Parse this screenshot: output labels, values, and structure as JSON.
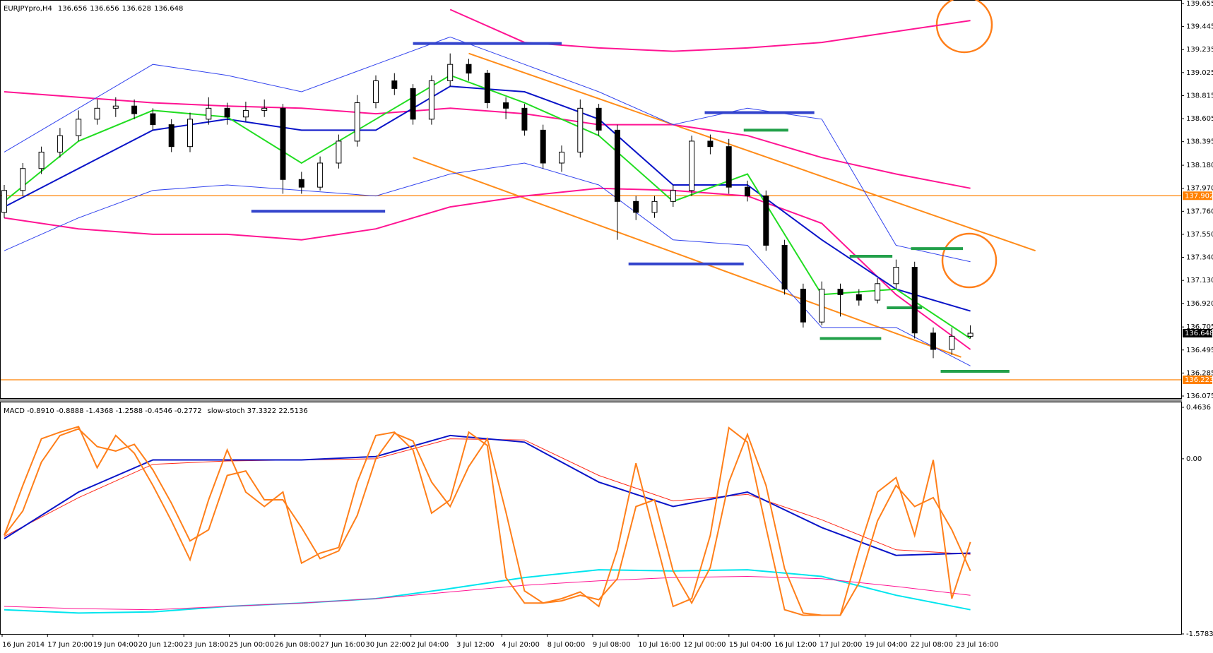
{
  "chart_data": [
    {
      "type": "candlestick",
      "symbol": "EURJPYpro,H4",
      "ohlc": [
        136.656,
        136.656,
        136.628,
        136.648
      ],
      "open": [
        137.75,
        137.95,
        138.15,
        138.3,
        138.45,
        138.6,
        138.7,
        138.72,
        138.65,
        138.55,
        138.35,
        138.6,
        138.7,
        138.62,
        138.68,
        138.7,
        138.05,
        137.98,
        138.2,
        138.4,
        138.75,
        138.95,
        138.88,
        138.6,
        138.95,
        139.1,
        139.02,
        138.75,
        138.7,
        138.5,
        138.2,
        138.3,
        138.7,
        138.5,
        137.85,
        137.75,
        137.85,
        137.95,
        138.4,
        138.35,
        137.98,
        137.9,
        137.45,
        137.05,
        136.75,
        137.05,
        137.0,
        136.95,
        137.1,
        137.25,
        136.65,
        136.5,
        136.62
      ],
      "high": [
        138.0,
        138.2,
        138.35,
        138.52,
        138.68,
        138.78,
        138.8,
        138.78,
        138.7,
        138.6,
        138.66,
        138.8,
        138.75,
        138.76,
        138.78,
        138.74,
        138.12,
        138.26,
        138.46,
        138.82,
        139.0,
        139.02,
        138.92,
        139.0,
        139.2,
        139.15,
        139.05,
        138.8,
        138.74,
        138.55,
        138.36,
        138.78,
        138.74,
        138.55,
        137.9,
        137.9,
        138.0,
        138.45,
        138.46,
        138.42,
        138.04,
        137.95,
        137.5,
        137.1,
        137.12,
        137.1,
        137.05,
        137.15,
        137.32,
        137.3,
        136.7,
        136.7,
        136.72
      ],
      "low": [
        137.7,
        137.9,
        138.1,
        138.25,
        138.4,
        138.55,
        138.62,
        138.6,
        138.5,
        138.3,
        138.3,
        138.55,
        138.55,
        138.58,
        138.62,
        137.92,
        137.92,
        137.95,
        138.15,
        138.35,
        138.7,
        138.82,
        138.55,
        138.55,
        138.9,
        138.95,
        138.7,
        138.6,
        138.45,
        138.15,
        138.12,
        138.25,
        138.45,
        137.5,
        137.68,
        137.7,
        137.8,
        137.9,
        138.28,
        137.92,
        137.85,
        137.4,
        137.0,
        136.7,
        136.72,
        136.8,
        136.9,
        136.92,
        137.05,
        136.6,
        136.42,
        136.45,
        136.6
      ],
      "close": [
        137.95,
        138.15,
        138.3,
        138.45,
        138.6,
        138.7,
        138.72,
        138.65,
        138.55,
        138.35,
        138.6,
        138.7,
        138.62,
        138.68,
        138.7,
        138.05,
        137.98,
        138.2,
        138.4,
        138.75,
        138.95,
        138.88,
        138.6,
        138.95,
        139.1,
        139.02,
        138.75,
        138.7,
        138.5,
        138.2,
        138.3,
        138.7,
        138.5,
        137.85,
        137.75,
        137.85,
        137.95,
        138.4,
        138.35,
        137.98,
        137.9,
        137.45,
        137.05,
        136.75,
        137.05,
        137.0,
        136.95,
        137.1,
        137.25,
        136.65,
        136.5,
        136.62,
        136.648
      ],
      "series": [
        {
          "color": "#ff1493",
          "width": 2,
          "x": [
            0,
            4,
            8,
            12,
            16,
            20,
            24,
            28,
            32,
            36,
            40,
            44,
            48,
            52
          ],
          "values": [
            138.85,
            138.8,
            138.75,
            138.72,
            138.7,
            138.65,
            138.7,
            138.65,
            138.55,
            138.55,
            138.45,
            138.25,
            138.1,
            137.97
          ]
        },
        {
          "color": "#ff1493",
          "width": 2,
          "x": [
            0,
            4,
            8,
            12,
            16,
            20,
            24,
            28,
            32,
            36,
            40,
            44,
            48,
            52
          ],
          "values": [
            null,
            null,
            null,
            null,
            null,
            null,
            139.6,
            139.3,
            139.25,
            139.22,
            139.25,
            139.3,
            139.4,
            139.5
          ]
        },
        {
          "color": "#ff1493",
          "width": 2,
          "x": [
            0,
            4,
            8,
            12,
            16,
            20,
            24,
            28,
            32,
            36,
            40,
            44,
            48,
            52
          ],
          "values": [
            137.7,
            137.6,
            137.55,
            137.55,
            137.5,
            137.6,
            137.8,
            137.9,
            137.97,
            137.95,
            137.9,
            137.65,
            137.0,
            136.5
          ]
        },
        {
          "color": "#3344ee",
          "width": 1,
          "x": [
            0,
            4,
            8,
            12,
            16,
            20,
            24,
            28,
            32,
            36,
            40,
            44,
            48,
            52
          ],
          "values": [
            138.3,
            138.7,
            139.1,
            139.0,
            138.85,
            139.1,
            139.35,
            139.1,
            138.85,
            138.55,
            138.7,
            138.6,
            137.45,
            137.3
          ]
        },
        {
          "color": "#3344ee",
          "width": 1,
          "x": [
            0,
            4,
            8,
            12,
            16,
            20,
            24,
            28,
            32,
            36,
            40,
            44,
            48,
            52
          ],
          "values": [
            137.4,
            137.7,
            137.95,
            138.0,
            137.95,
            137.9,
            138.1,
            138.2,
            138.0,
            137.5,
            137.45,
            136.7,
            136.7,
            136.35
          ]
        },
        {
          "color": "#0a14c8",
          "width": 2,
          "x": [
            0,
            4,
            8,
            12,
            16,
            20,
            24,
            28,
            32,
            36,
            40,
            44,
            48,
            52
          ],
          "values": [
            137.8,
            138.15,
            138.5,
            138.6,
            138.5,
            138.5,
            138.9,
            138.85,
            138.6,
            138.0,
            138.0,
            137.5,
            137.05,
            136.85
          ]
        },
        {
          "color": "#22dd22",
          "width": 2,
          "x": [
            0,
            4,
            8,
            12,
            16,
            20,
            24,
            28,
            32,
            36,
            40,
            44,
            48,
            52
          ],
          "values": [
            137.85,
            138.4,
            138.68,
            138.62,
            138.2,
            138.6,
            139.0,
            138.75,
            138.45,
            137.85,
            138.1,
            137.0,
            137.05,
            136.6
          ]
        }
      ],
      "segments": [
        {
          "x": [
            22,
            30
          ],
          "value": 139.29,
          "color": "#3344cc"
        },
        {
          "x": [
            13.3,
            20.5
          ],
          "value": 137.76,
          "color": "#3344cc"
        },
        {
          "x": [
            37.7,
            43.6
          ],
          "value": 138.66,
          "color": "#3344cc"
        },
        {
          "x": [
            33.6,
            39.8
          ],
          "value": 137.28,
          "color": "#3344cc"
        },
        {
          "x": [
            39.8,
            42.2
          ],
          "value": 138.5,
          "color": "#22a04a"
        },
        {
          "x": [
            45.5,
            47.8
          ],
          "value": 137.35,
          "color": "#22a04a"
        },
        {
          "x": [
            48.8,
            51.6
          ],
          "value": 137.42,
          "color": "#22a04a"
        },
        {
          "x": [
            47.5,
            49.4
          ],
          "value": 136.88,
          "color": "#22a04a"
        },
        {
          "x": [
            43.9,
            47.2
          ],
          "value": 136.6,
          "color": "#22a04a"
        },
        {
          "x": [
            50.4,
            54.1
          ],
          "value": 136.3,
          "color": "#22a04a"
        }
      ],
      "trendlines": [
        {
          "x": [
            25,
            55.5
          ],
          "values": [
            139.2,
            137.4
          ],
          "color": "#ff8c1a"
        },
        {
          "x": [
            22,
            51.5
          ],
          "values": [
            138.25,
            136.43
          ],
          "color": "#ff8c1a"
        }
      ],
      "levels": [
        {
          "value": 137.902,
          "color": "#ff8000"
        },
        {
          "value": 136.223,
          "color": "#ff8000"
        }
      ],
      "last": 136.648,
      "ylim": [
        136.075,
        139.655
      ],
      "yticks": [
        139.655,
        139.445,
        139.235,
        139.025,
        138.815,
        138.605,
        138.395,
        {
          "value": 138.18,
          "label": "138.180"
        },
        {
          "value": 137.97,
          "label": "137.970"
        },
        {
          "value": 137.76,
          "label": "137.760"
        },
        {
          "value": 137.55,
          "label": "137.550"
        },
        {
          "value": 137.34,
          "label": "137.340"
        },
        {
          "value": 137.13,
          "label": "137.130"
        },
        {
          "value": 136.92,
          "label": "136.920"
        },
        136.705,
        136.495,
        136.285,
        136.075
      ],
      "time_labels": [
        "16 Jun 2014",
        "17 Jun 20:00",
        "19 Jun 04:00",
        "20 Jun 12:00",
        "23 Jun 18:00",
        "25 Jun 00:00",
        "26 Jun 08:00",
        "27 Jun 16:00",
        "30 Jun 22:00",
        "2 Jul 04:00",
        "3 Jul 12:00",
        "4 Jul 20:00",
        "8 Jul 00:00",
        "9 Jul 08:00",
        "10 Jul 16:00",
        "12 Jul 00:00",
        "15 Jul 04:00",
        "16 Jul 12:00",
        "17 Jul 20:00",
        "19 Jul 04:00",
        "22 Jul 08:00",
        "23 Jul 16:00"
      ]
    },
    {
      "type": "line",
      "title": "MACD -0.8910 -0.8888 -1.4368 -1.2588 -0.4546 -0.2772",
      "subtitle": "slow-stoch 37.3322 22.5136",
      "series": [
        {
          "color": "#00e5ee",
          "width": 2,
          "x": [
            0,
            4,
            8,
            12,
            16,
            20,
            24,
            28,
            32,
            36,
            40,
            44,
            48,
            52
          ],
          "values": [
            -1.36,
            -1.39,
            -1.38,
            -1.33,
            -1.3,
            -1.26,
            -1.17,
            -1.07,
            -1.0,
            -1.01,
            -1.0,
            -1.06,
            -1.23,
            -1.36
          ]
        },
        {
          "color": "#ff1493",
          "width": 1,
          "x": [
            0,
            4,
            8,
            12,
            16,
            20,
            24,
            28,
            32,
            36,
            40,
            44,
            48,
            52
          ],
          "values": [
            -1.33,
            -1.35,
            -1.36,
            -1.33,
            -1.3,
            -1.26,
            -1.2,
            -1.14,
            -1.1,
            -1.07,
            -1.06,
            -1.08,
            -1.15,
            -1.23
          ]
        },
        {
          "color": "#ff2a1a",
          "width": 1,
          "x": [
            0,
            4,
            8,
            12,
            16,
            20,
            24,
            28,
            32,
            36,
            40,
            44,
            48,
            52
          ],
          "values": [
            -0.7,
            -0.35,
            -0.05,
            -0.02,
            -0.01,
            0.0,
            0.18,
            0.17,
            -0.15,
            -0.38,
            -0.32,
            -0.55,
            -0.82,
            -0.86
          ]
        },
        {
          "color": "#0a14c8",
          "width": 2,
          "x": [
            0,
            4,
            8,
            12,
            16,
            20,
            24,
            28,
            32,
            36,
            40,
            44,
            48,
            52
          ],
          "values": [
            -0.72,
            -0.3,
            -0.01,
            -0.01,
            -0.01,
            0.02,
            0.21,
            0.15,
            -0.21,
            -0.43,
            -0.3,
            -0.62,
            -0.87,
            -0.85
          ]
        },
        {
          "color": "#ff7f1a",
          "width": 2,
          "x": [
            0,
            1,
            2,
            3,
            4,
            5,
            6,
            7,
            8,
            9,
            10,
            11,
            12,
            13,
            14,
            15,
            16,
            17,
            18,
            19,
            20,
            21,
            22,
            23,
            24,
            25,
            26,
            27,
            28,
            29,
            30,
            31,
            32,
            33,
            34,
            35,
            36,
            37,
            38,
            39,
            40,
            41,
            42,
            43,
            44,
            45,
            46,
            47,
            48,
            49,
            50,
            51,
            52
          ],
          "values": [
            -0.69,
            -0.47,
            -0.03,
            0.21,
            0.27,
            0.11,
            0.07,
            0.13,
            -0.1,
            -0.4,
            -0.74,
            -0.64,
            -0.15,
            -0.11,
            -0.37,
            -0.37,
            -0.62,
            -0.9,
            -0.83,
            -0.51,
            0.0,
            0.23,
            0.16,
            -0.21,
            -0.43,
            -0.07,
            0.18,
            -0.48,
            -1.19,
            -1.3,
            -1.28,
            -1.23,
            -1.27,
            -1.08,
            -0.43,
            -0.37,
            -1.01,
            -1.3,
            -0.98,
            -0.21,
            0.22,
            -0.24,
            -0.99,
            -1.39,
            -1.41,
            -1.41,
            -1.12,
            -0.56,
            -0.24,
            -0.43,
            -0.35,
            -0.64,
            -1.01
          ]
        },
        {
          "color": "#ff7f1a",
          "width": 2,
          "x": [
            0,
            1,
            2,
            3,
            4,
            5,
            6,
            7,
            8,
            9,
            10,
            11,
            12,
            13,
            14,
            15,
            16,
            17,
            18,
            19,
            20,
            21,
            22,
            23,
            24,
            25,
            26,
            27,
            28,
            29,
            30,
            31,
            32,
            33,
            34,
            35,
            36,
            37,
            38,
            39,
            40,
            41,
            42,
            43,
            44,
            45,
            46,
            47,
            48,
            49,
            50,
            51,
            52
          ],
          "values": [
            -0.69,
            -0.24,
            0.18,
            0.24,
            0.29,
            -0.08,
            0.21,
            0.05,
            -0.24,
            -0.56,
            -0.91,
            -0.37,
            0.08,
            -0.3,
            -0.43,
            -0.3,
            -0.94,
            -0.85,
            -0.8,
            -0.21,
            0.21,
            0.24,
            0.08,
            -0.49,
            -0.37,
            0.24,
            0.12,
            -1.07,
            -1.3,
            -1.3,
            -1.26,
            -1.2,
            -1.33,
            -0.82,
            -0.04,
            -0.69,
            -1.33,
            -1.26,
            -0.69,
            0.28,
            0.15,
            -0.62,
            -1.36,
            -1.41,
            -1.41,
            -1.41,
            -0.82,
            -0.3,
            -0.17,
            -0.69,
            -0.01,
            -1.26,
            -0.75
          ]
        }
      ],
      "ylim": [
        -1.5783,
        0.4636
      ],
      "yticks": [
        0.4636,
        {
          "value": 0,
          "label": "0.00"
        },
        -1.5783
      ]
    }
  ]
}
